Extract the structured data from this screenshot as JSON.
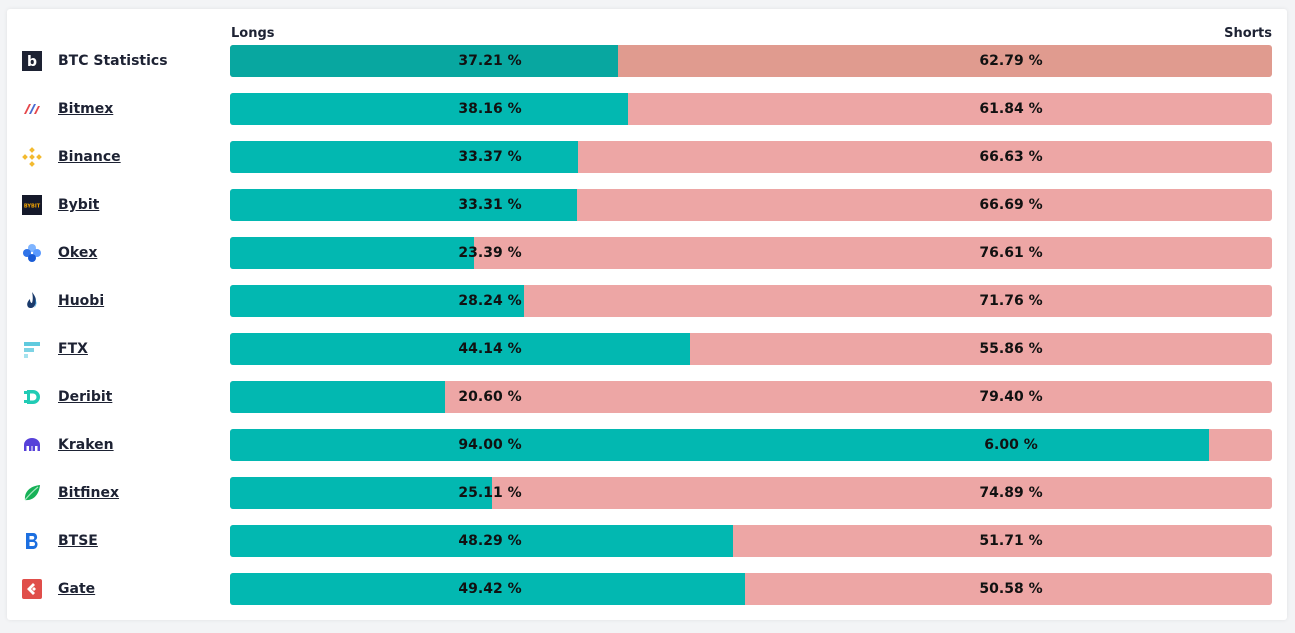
{
  "header": {
    "longs_label": "Longs",
    "shorts_label": "Shorts"
  },
  "colors": {
    "long": "#02b8b1",
    "short": "#eda6a5",
    "long_aggregate": "#08a7a0",
    "short_aggregate": "#e09b8f"
  },
  "chart_data": {
    "type": "bar",
    "orientation": "horizontal-stacked-100",
    "categories": [
      "BTC Statistics",
      "Bitmex",
      "Binance",
      "Bybit",
      "Okex",
      "Huobi",
      "FTX",
      "Deribit",
      "Kraken",
      "Bitfinex",
      "BTSE",
      "Gate"
    ],
    "series": [
      {
        "name": "Longs",
        "values": [
          37.21,
          38.16,
          33.37,
          33.31,
          23.39,
          28.24,
          44.14,
          20.6,
          94.0,
          25.11,
          48.29,
          49.42
        ],
        "labels": [
          "37.21 %",
          "38.16 %",
          "33.37 %",
          "33.31 %",
          "23.39 %",
          "28.24 %",
          "44.14 %",
          "20.60 %",
          "94.00 %",
          "25.11 %",
          "48.29 %",
          "49.42 %"
        ]
      },
      {
        "name": "Shorts",
        "values": [
          62.79,
          61.84,
          66.63,
          66.69,
          76.61,
          71.76,
          55.86,
          79.4,
          6.0,
          74.89,
          51.71,
          50.58
        ],
        "labels": [
          "62.79 %",
          "61.84 %",
          "66.63 %",
          "66.69 %",
          "76.61 %",
          "71.76 %",
          "55.86 %",
          "79.40 %",
          "6.00 %",
          "74.89 %",
          "51.71 %",
          "50.58 %"
        ]
      }
    ],
    "xlim": [
      0,
      100
    ],
    "legend": "top",
    "grid": false
  },
  "rows": [
    {
      "name": "BTC Statistics",
      "icon": "btc-statistics-icon",
      "link": false
    },
    {
      "name": "Bitmex",
      "icon": "bitmex-icon",
      "link": true
    },
    {
      "name": "Binance",
      "icon": "binance-icon",
      "link": true
    },
    {
      "name": "Bybit",
      "icon": "bybit-icon",
      "link": true,
      "icon_text": "BYBIT"
    },
    {
      "name": "Okex",
      "icon": "okex-icon",
      "link": true
    },
    {
      "name": "Huobi",
      "icon": "huobi-icon",
      "link": true
    },
    {
      "name": "FTX",
      "icon": "ftx-icon",
      "link": true
    },
    {
      "name": "Deribit",
      "icon": "deribit-icon",
      "link": true
    },
    {
      "name": "Kraken",
      "icon": "kraken-icon",
      "link": true
    },
    {
      "name": "Bitfinex",
      "icon": "bitfinex-icon",
      "link": true
    },
    {
      "name": "BTSE",
      "icon": "btse-icon",
      "link": true
    },
    {
      "name": "Gate",
      "icon": "gate-icon",
      "link": true
    }
  ]
}
